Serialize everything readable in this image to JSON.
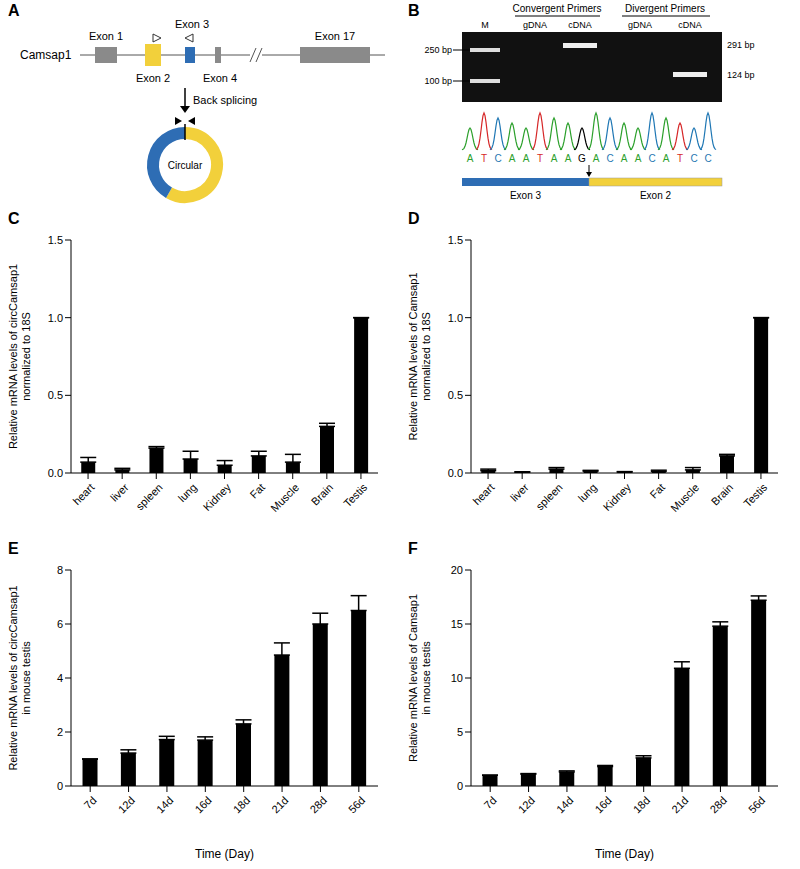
{
  "diagram_A": {
    "panel": "A",
    "gene": "Camsap1",
    "exons": [
      "Exon 1",
      "Exon 2",
      "Exon 3",
      "Exon 4",
      "Exon 17"
    ],
    "arrow_label": "Back splicing",
    "product": "Circular"
  },
  "gel_B": {
    "panel": "B",
    "groups": [
      "Convergent Primers",
      "Divergent Primers"
    ],
    "lanes": [
      "M",
      "gDNA",
      "cDNA",
      "gDNA",
      "cDNA"
    ],
    "marker_labels": [
      "250 bp",
      "100 bp"
    ],
    "band_labels": [
      "291 bp",
      "124 bp"
    ],
    "sequence": [
      "ATCAATAAG",
      "ACAACATCC"
    ],
    "sequence_exons": [
      "Exon 3",
      "Exon 2"
    ]
  },
  "chart_data": [
    {
      "panel": "C",
      "type": "bar",
      "categories": [
        "heart",
        "liver",
        "spleen",
        "lung",
        "Kidney",
        "Fat",
        "Muscle",
        "Brain",
        "Testis"
      ],
      "values": [
        0.07,
        0.02,
        0.16,
        0.09,
        0.05,
        0.11,
        0.07,
        0.3,
        1.0
      ],
      "errors": [
        0.03,
        0.01,
        0.01,
        0.05,
        0.03,
        0.03,
        0.05,
        0.02,
        0
      ],
      "color": "#000000",
      "ylim": [
        0,
        1.5
      ],
      "yticks": [
        {
          "value": 0,
          "label": "0.0"
        },
        0.5,
        {
          "value": 1,
          "label": "1.0"
        },
        1.5
      ],
      "y_label": [
        "Relative mRNA levels of circCamsap1",
        "normalized to 18S"
      ],
      "grid": false
    },
    {
      "panel": "D",
      "type": "bar",
      "categories": [
        "heart",
        "liver",
        "spleen",
        "lung",
        "Kidney",
        "Fat",
        "Muscle",
        "Brain",
        "Testis"
      ],
      "values": [
        0.015,
        0.005,
        0.025,
        0.012,
        0.006,
        0.01,
        0.02,
        0.11,
        1.0
      ],
      "errors": [
        0.01,
        0.003,
        0.01,
        0.005,
        0.003,
        0.008,
        0.015,
        0.01,
        0
      ],
      "color": "#000000",
      "ylim": [
        0,
        1.5
      ],
      "yticks": [
        {
          "value": 0,
          "label": "0.0"
        },
        0.5,
        {
          "value": 1,
          "label": "1.0"
        },
        1.5
      ],
      "y_label": [
        "Relative mRNA levels of Camsap1",
        "normalized to 18S"
      ],
      "grid": false
    },
    {
      "panel": "E",
      "type": "bar",
      "categories": [
        "7d",
        "12d",
        "14d",
        "16d",
        "18d",
        "21d",
        "28d",
        "56d"
      ],
      "values": [
        1,
        1.22,
        1.72,
        1.7,
        2.3,
        4.85,
        6.0,
        6.5
      ],
      "errors": [
        0,
        0.12,
        0.12,
        0.12,
        0.15,
        0.45,
        0.4,
        0.55
      ],
      "color": "#000000",
      "ylim": [
        0,
        8
      ],
      "yticks": [
        0,
        2,
        4,
        6,
        8
      ],
      "x_label": "Time (Day)",
      "y_label": [
        "Relative mRNA levels of circCamsap1",
        "in mouse testis"
      ],
      "grid": false
    },
    {
      "panel": "F",
      "type": "bar",
      "categories": [
        "7d",
        "12d",
        "14d",
        "16d",
        "18d",
        "21d",
        "28d",
        "56d"
      ],
      "values": [
        1,
        1.1,
        1.3,
        1.8,
        2.6,
        10.9,
        14.8,
        17.2
      ],
      "errors": [
        0,
        0.05,
        0.1,
        0.1,
        0.2,
        0.6,
        0.4,
        0.4
      ],
      "color": "#000000",
      "ylim": [
        0,
        20
      ],
      "yticks": [
        0,
        5,
        10,
        15,
        20
      ],
      "x_label": "Time (Day)",
      "y_label": [
        "Relative mRNA levels of Camsap1",
        "in mouse testis"
      ],
      "grid": false
    }
  ]
}
